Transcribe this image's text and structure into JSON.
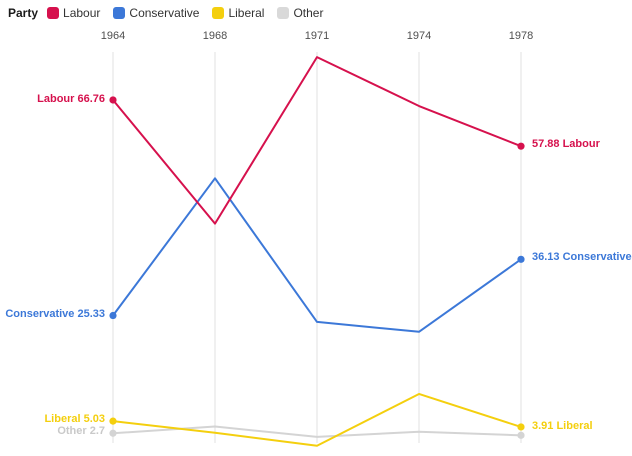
{
  "legend": {
    "title": "Party",
    "items": [
      {
        "label": "Labour",
        "color": "#d6114d"
      },
      {
        "label": "Conservative",
        "color": "#3c78d8"
      },
      {
        "label": "Liberal",
        "color": "#f4cf0e"
      },
      {
        "label": "Other",
        "color": "#d9d9d9"
      }
    ]
  },
  "chart_data": {
    "type": "line",
    "x_labels": [
      "1964",
      "1968",
      "1971",
      "1974",
      "1978"
    ],
    "x_axis_position": "top",
    "grid": "vertical-only",
    "legend_position": "top-left",
    "ylim": [
      0,
      76
    ],
    "series": [
      {
        "name": "Labour",
        "color": "#d6114d",
        "values": [
          66.76,
          43.0,
          75.0,
          65.6,
          57.88
        ],
        "start_label": "Labour 66.76",
        "end_label": "57.88 Labour"
      },
      {
        "name": "Conservative",
        "color": "#3c78d8",
        "values": [
          25.33,
          51.7,
          24.1,
          22.2,
          36.13
        ],
        "start_label": "Conservative 25.33",
        "end_label": "36.13 Conservative"
      },
      {
        "name": "Liberal",
        "color": "#f4cf0e",
        "values": [
          5.03,
          2.8,
          0.3,
          10.25,
          3.91
        ],
        "start_label": "Liberal 5.03",
        "end_label": "3.91 Liberal"
      },
      {
        "name": "Other",
        "color": "#d4d4d4",
        "values": [
          2.7,
          4.0,
          2.0,
          3.0,
          2.3
        ],
        "start_label": "Other 2.7",
        "end_label": ""
      }
    ]
  }
}
